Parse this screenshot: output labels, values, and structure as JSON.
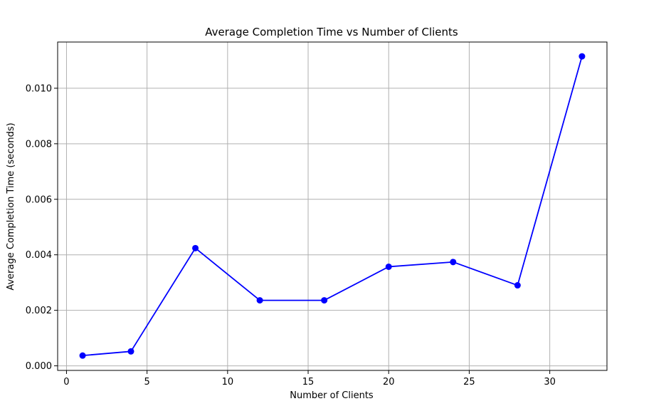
{
  "chart_data": {
    "type": "line",
    "title": "Average Completion Time vs Number of Clients",
    "xlabel": "Number of Clients",
    "ylabel": "Average Completion Time (seconds)",
    "x": [
      1,
      4,
      8,
      12,
      16,
      20,
      24,
      28,
      32
    ],
    "series": [
      {
        "values": [
          0.00037,
          0.00052,
          0.00424,
          0.00236,
          0.00236,
          0.00357,
          0.00374,
          0.0029,
          0.01115
        ],
        "color": "#0000ff",
        "marker": "circle"
      }
    ],
    "xlim": [
      -0.55,
      33.55
    ],
    "ylim": [
      -0.000165,
      0.011665
    ],
    "xticks": [
      0,
      5,
      10,
      15,
      20,
      25,
      30
    ],
    "yticks": [
      0.0,
      0.002,
      0.004,
      0.006,
      0.008,
      0.01
    ],
    "xtick_labels": [
      "0",
      "5",
      "10",
      "15",
      "20",
      "25",
      "30"
    ],
    "ytick_labels": [
      "0.000",
      "0.002",
      "0.004",
      "0.006",
      "0.008",
      "0.010"
    ],
    "grid": true,
    "grid_color": "#b0b0b0"
  }
}
